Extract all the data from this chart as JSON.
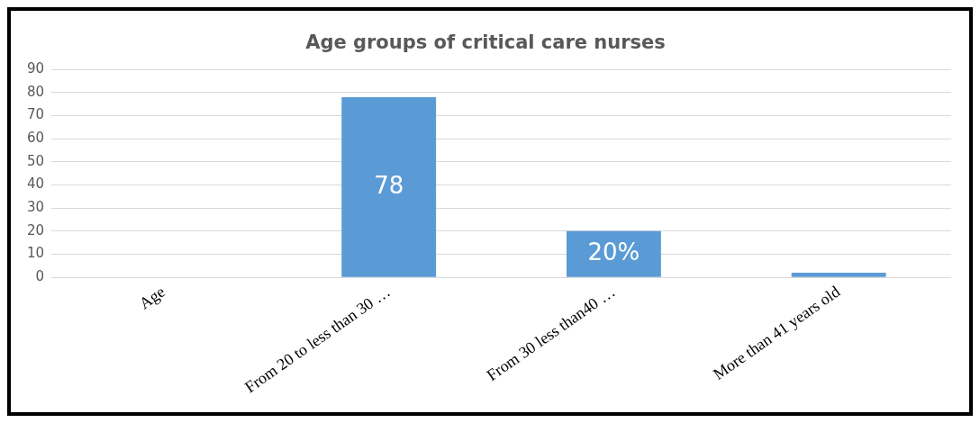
{
  "chart_data": {
    "type": "bar",
    "title": "Age groups of critical care nurses",
    "categories": [
      "Age",
      "From 20 to less than 30 …",
      "From 30 less than40 …",
      "More than 41 years old"
    ],
    "values": [
      null,
      78,
      20,
      2
    ],
    "color": "#5b9bd5",
    "value_labels": [
      null,
      "78",
      "20%",
      null
    ],
    "ylim": [
      0,
      90
    ],
    "yticks": [
      0,
      10,
      20,
      30,
      40,
      50,
      60,
      70,
      80,
      90
    ],
    "grid": "y"
  }
}
